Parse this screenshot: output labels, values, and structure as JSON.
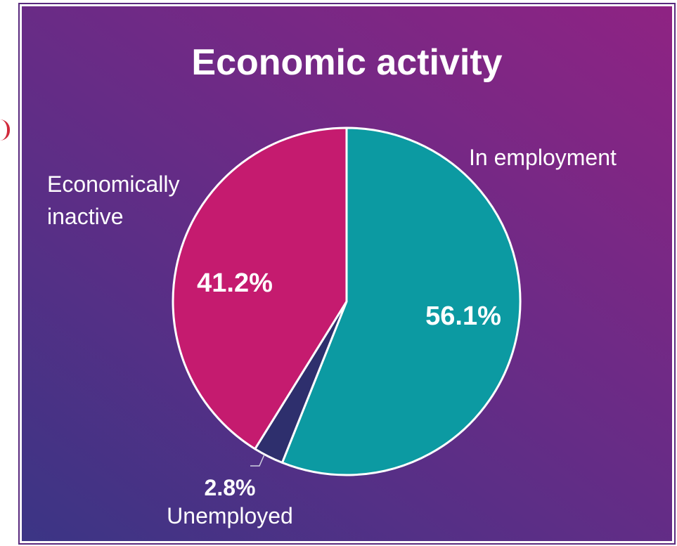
{
  "chart_data": {
    "type": "pie",
    "title": "Economic activity",
    "slices": [
      {
        "name": "In employment",
        "value": 56.1,
        "label": "56.1%",
        "color": "#0c9aa2"
      },
      {
        "name": "Unemployed",
        "value": 2.8,
        "label": "2.8%",
        "color": "#2e2f6d"
      },
      {
        "name": "Economically inactive",
        "value": 41.2,
        "label": "41.2%",
        "color": "#c51b6f"
      }
    ],
    "category_labels": {
      "employment": "In employment",
      "unemployed": "Unemployed",
      "inactive_line1": "Economically",
      "inactive_line2": "inactive"
    },
    "start_angle": "12 o'clock",
    "direction": "clockwise"
  },
  "colors": {
    "background_top": "#8f2383",
    "background_bottom": "#3b3585",
    "slice_border": "#ffffff",
    "text": "#ffffff"
  }
}
